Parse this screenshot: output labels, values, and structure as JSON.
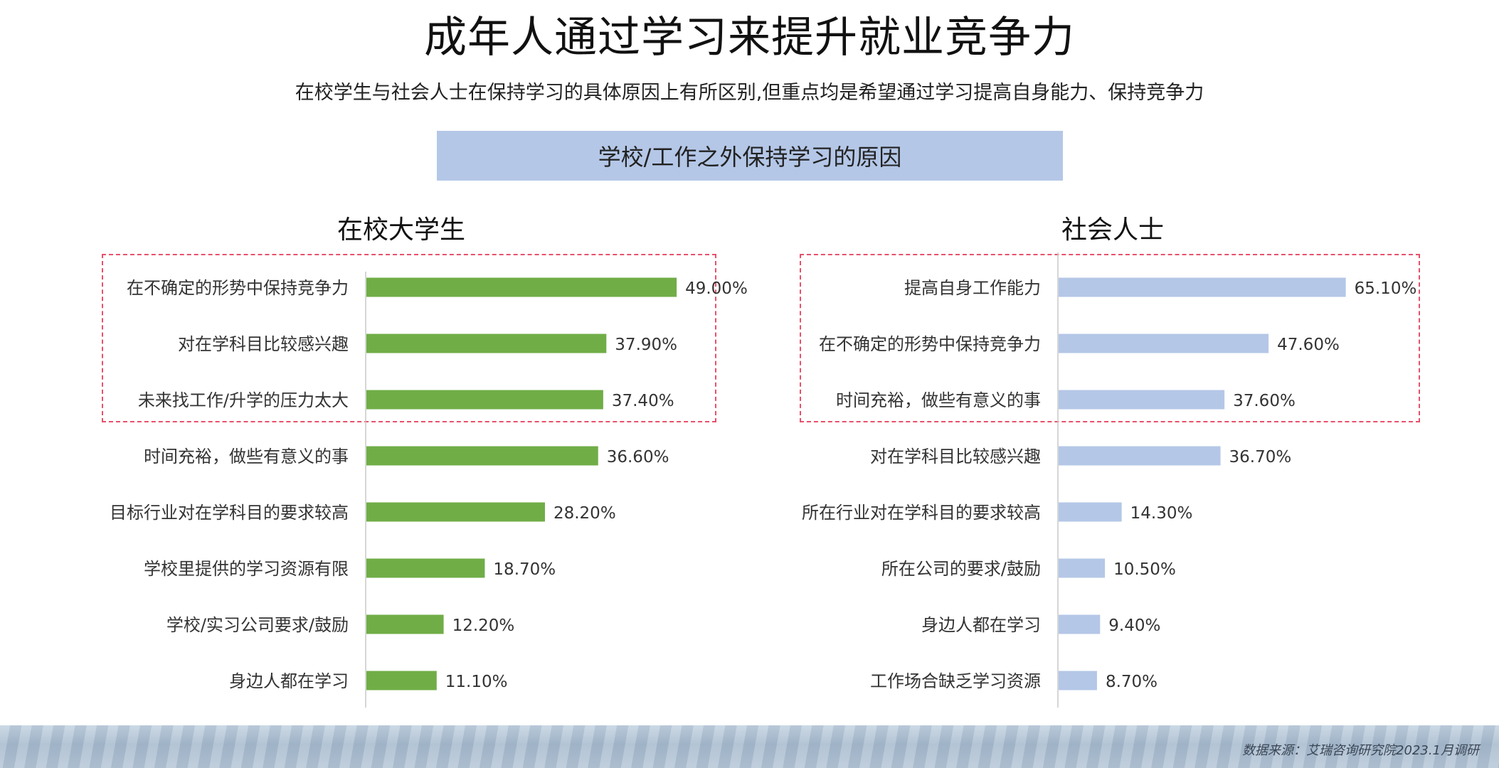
{
  "title": "成年人通过学习来提升就业竞争力",
  "subtitle": "在校学生与社会人士在保持学习的具体原因上有所区别,但重点均是希望通过学习提高自身能力、保持竞争力",
  "section_title": "学校/工作之外保持学习的原因",
  "source": "数据来源：艾瑞咨询研究院2023.1月调研",
  "colors": {
    "left_bar": "#70ad47",
    "right_bar": "#b4c7e7",
    "highlight": "#e8506b"
  },
  "chart_data": [
    {
      "type": "bar",
      "orientation": "horizontal",
      "title": "在校大学生",
      "categories": [
        "在不确定的形势中保持竞争力",
        "对在学科目比较感兴趣",
        "未来找工作/升学的压力太大",
        "时间充裕，做些有意义的事",
        "目标行业对在学科目的要求较高",
        "学校里提供的学习资源有限",
        "学校/实习公司要求/鼓励",
        "身边人都在学习"
      ],
      "values": [
        49.0,
        37.9,
        37.4,
        36.6,
        28.2,
        18.7,
        12.2,
        11.1
      ],
      "value_labels": [
        "49.00%",
        "37.90%",
        "37.40%",
        "36.60%",
        "28.20%",
        "18.70%",
        "12.20%",
        "11.10%"
      ],
      "unit": "%",
      "highlighted_top": 3
    },
    {
      "type": "bar",
      "orientation": "horizontal",
      "title": "社会人士",
      "categories": [
        "提高自身工作能力",
        "在不确定的形势中保持竞争力",
        "时间充裕，做些有意义的事",
        "对在学科目比较感兴趣",
        "所在行业对在学科目的要求较高",
        "所在公司的要求/鼓励",
        "身边人都在学习",
        "工作场合缺乏学习资源"
      ],
      "values": [
        65.1,
        47.6,
        37.6,
        36.7,
        14.3,
        10.5,
        9.4,
        8.7
      ],
      "value_labels": [
        "65.10%",
        "47.60%",
        "37.60%",
        "36.70%",
        "14.30%",
        "10.50%",
        "9.40%",
        "8.70%"
      ],
      "unit": "%",
      "highlighted_top": 3
    }
  ]
}
